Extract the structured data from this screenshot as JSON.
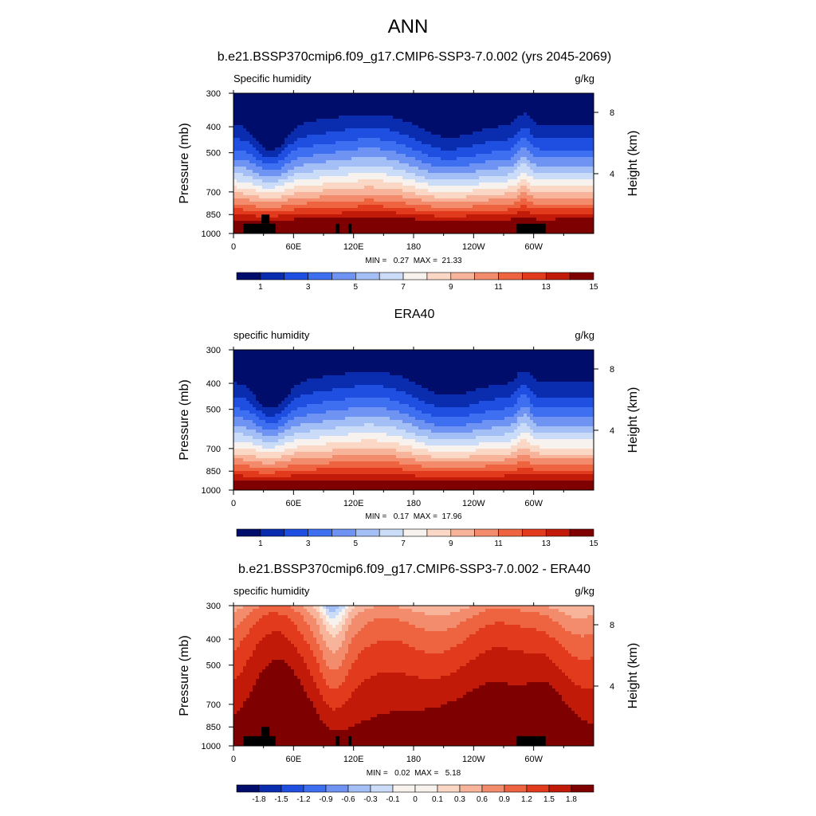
{
  "header": {
    "title": "ANN"
  },
  "chart_data": [
    {
      "type": "heatmap",
      "title": "b.e21.BSSP370cmip6.f09_g17.CMIP6-SSP3-7.0.002 (yrs 2045-2069)",
      "left_string": "Specific humidity",
      "right_string": "g/kg",
      "ylabel": "Pressure (mb)",
      "y2label": "Height (km)",
      "x_ticks": [
        "0",
        "60E",
        "120E",
        "180",
        "120W",
        "60W"
      ],
      "y_ticks": [
        "300",
        "400",
        "500",
        "700",
        "850",
        "1000"
      ],
      "y2_ticks": [
        "8",
        "4"
      ],
      "xlim": [
        0,
        360
      ],
      "ylim": [
        1000,
        300
      ],
      "y_scale": "log",
      "stats": "MIN =   0.27  MAX =  21.33",
      "colorbar_labels": [
        "1",
        "3",
        "5",
        "7",
        "9",
        "11",
        "13",
        "15"
      ],
      "colorbar_colors": [
        "#000d6b",
        "#0a2db0",
        "#1f4fe0",
        "#3d6ff0",
        "#6f93f2",
        "#a3bff6",
        "#cadcf8",
        "#f7f2ee",
        "#fbd7c5",
        "#f7b49a",
        "#f28c6c",
        "#ee6440",
        "#e23a1c",
        "#c11a09",
        "#7e0000"
      ]
    },
    {
      "type": "heatmap",
      "title": "ERA40",
      "left_string": "specific humidity",
      "right_string": "g/kg",
      "ylabel": "Pressure (mb)",
      "y2label": "Height (km)",
      "x_ticks": [
        "0",
        "60E",
        "120E",
        "180",
        "120W",
        "60W"
      ],
      "y_ticks": [
        "300",
        "400",
        "500",
        "700",
        "850",
        "1000"
      ],
      "y2_ticks": [
        "8",
        "4"
      ],
      "xlim": [
        0,
        360
      ],
      "ylim": [
        1000,
        300
      ],
      "y_scale": "log",
      "stats": "MIN =   0.17  MAX =  17.96",
      "colorbar_labels": [
        "1",
        "3",
        "5",
        "7",
        "9",
        "11",
        "13",
        "15"
      ],
      "colorbar_colors": [
        "#000d6b",
        "#0a2db0",
        "#1f4fe0",
        "#3d6ff0",
        "#6f93f2",
        "#a3bff6",
        "#cadcf8",
        "#f7f2ee",
        "#fbd7c5",
        "#f7b49a",
        "#f28c6c",
        "#ee6440",
        "#e23a1c",
        "#c11a09",
        "#7e0000"
      ]
    },
    {
      "type": "heatmap",
      "title": "b.e21.BSSP370cmip6.f09_g17.CMIP6-SSP3-7.0.002 - ERA40",
      "left_string": "specific humidity",
      "right_string": "g/kg",
      "ylabel": "Pressure (mb)",
      "y2label": "Height (km)",
      "x_ticks": [
        "0",
        "60E",
        "120E",
        "180",
        "120W",
        "60W"
      ],
      "y_ticks": [
        "300",
        "400",
        "500",
        "700",
        "850",
        "1000"
      ],
      "y2_ticks": [
        "8",
        "4"
      ],
      "xlim": [
        0,
        360
      ],
      "ylim": [
        1000,
        300
      ],
      "y_scale": "log",
      "stats": "MIN =   0.02  MAX =   5.18",
      "colorbar_labels": [
        "-1.8",
        "-1.5",
        "-1.2",
        "-0.9",
        "-0.6",
        "-0.3",
        "-0.1",
        "0",
        "0.1",
        "0.3",
        "0.6",
        "0.9",
        "1.2",
        "1.5",
        "1.8"
      ],
      "colorbar_colors": [
        "#000d6b",
        "#0a2db0",
        "#1f4fe0",
        "#3d6ff0",
        "#6f93f2",
        "#a3bff6",
        "#cadcf8",
        "#f7f2ee",
        "#f7f2ee",
        "#fbd7c5",
        "#f7b49a",
        "#f28c6c",
        "#ee6440",
        "#e23a1c",
        "#c11a09",
        "#7e0000"
      ]
    }
  ]
}
